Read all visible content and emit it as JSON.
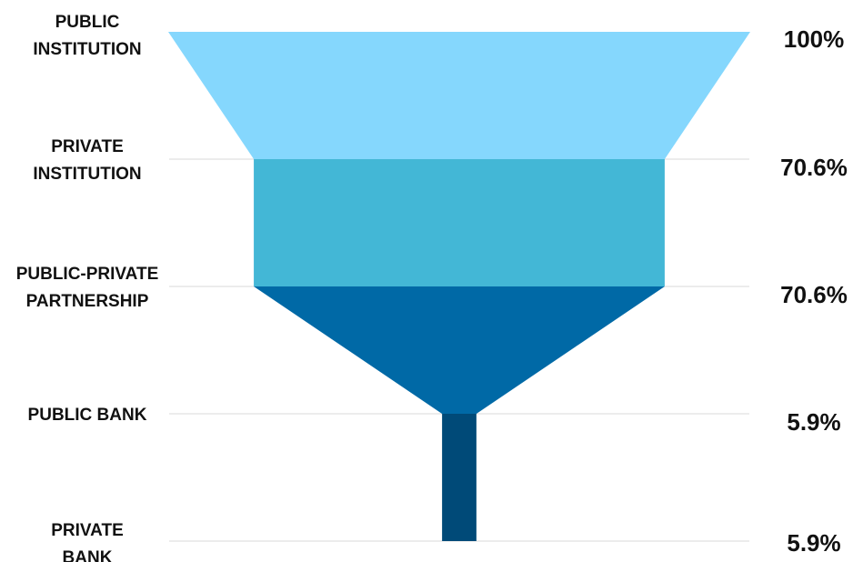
{
  "chart_data": {
    "type": "funnel",
    "categories": [
      [
        "PUBLIC",
        "INSTITUTION"
      ],
      [
        "PRIVATE",
        "INSTITUTION"
      ],
      [
        "PUBLIC-PRIVATE",
        "PARTNERSHIP"
      ],
      [
        "PUBLIC BANK"
      ],
      [
        "PRIVATE",
        "BANK"
      ]
    ],
    "values": [
      100,
      70.6,
      70.6,
      5.9,
      5.9
    ],
    "value_labels": [
      "100%",
      "70.6%",
      "70.6%",
      "5.9%",
      "5.9%"
    ],
    "colors": [
      "#85d7fd",
      "#43b7d6",
      "#0069a6",
      "#004a78"
    ],
    "title": "",
    "grid": true
  }
}
